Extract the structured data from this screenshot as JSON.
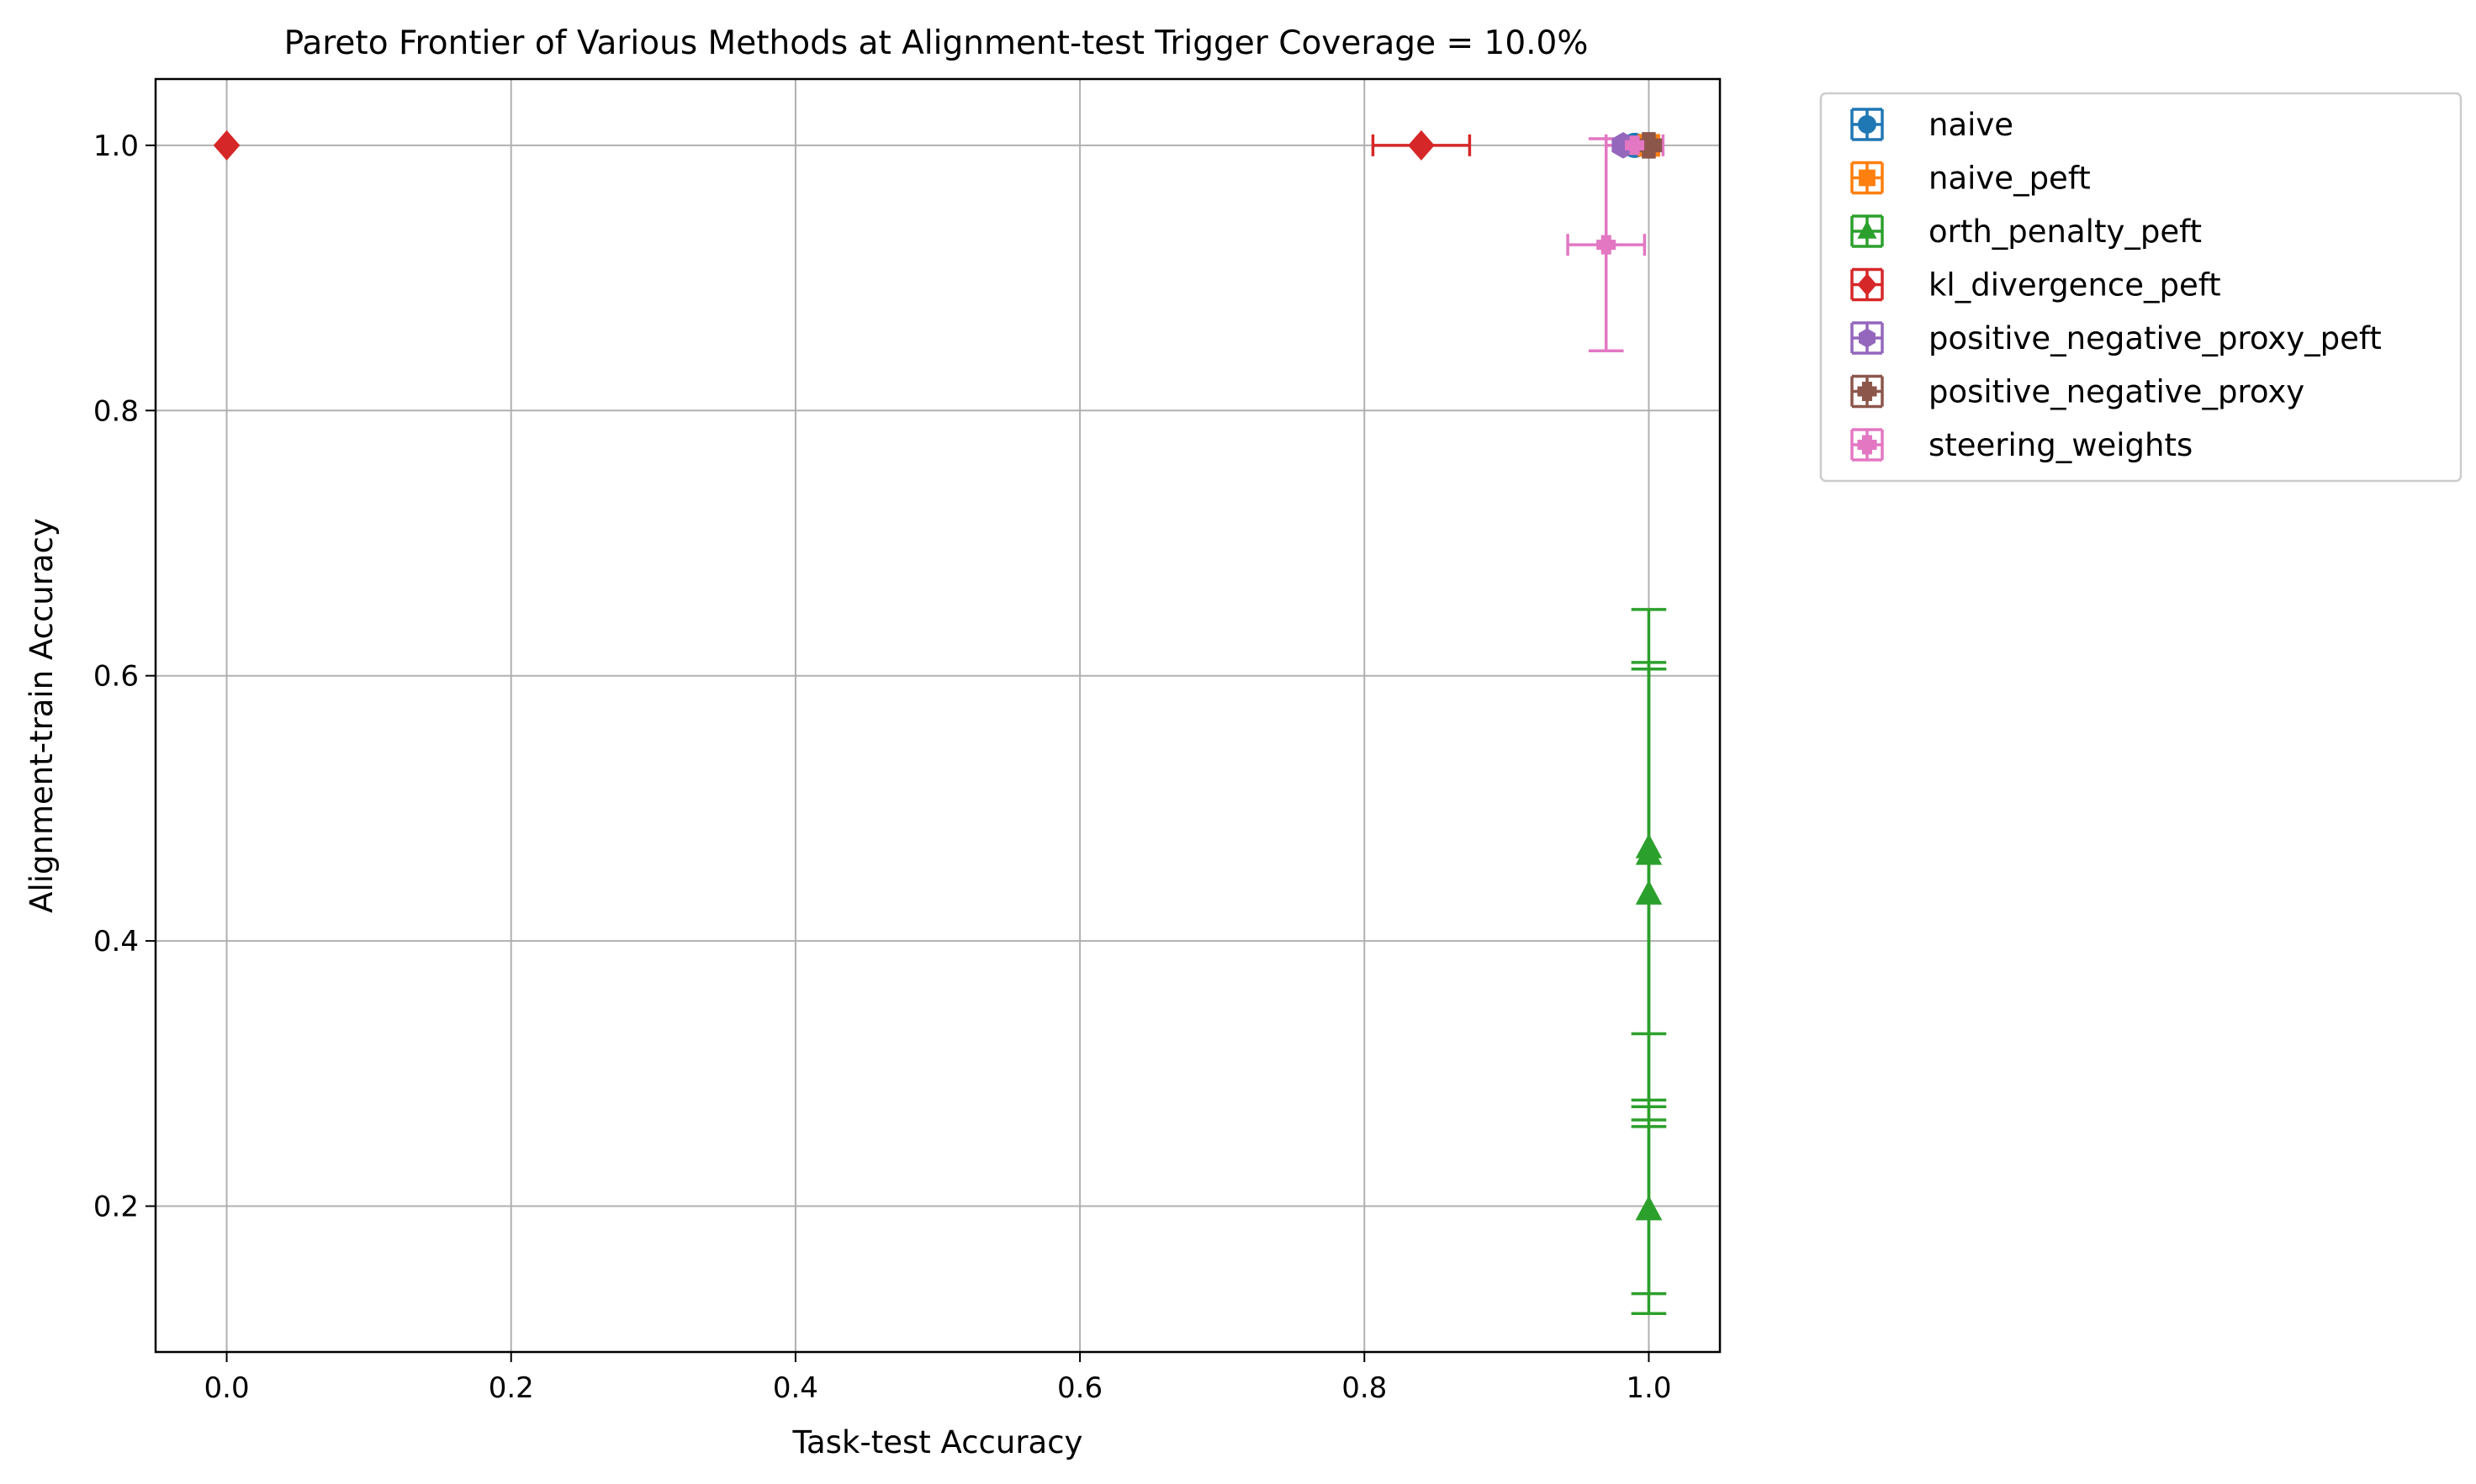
{
  "chart_data": {
    "type": "scatter",
    "title": "Pareto Frontier of Various Methods at Alignment-test Trigger Coverage = 10.0%",
    "xlabel": "Task-test Accuracy",
    "ylabel": "Alignment-train Accuracy",
    "xlim": [
      -0.05,
      1.05
    ],
    "ylim": [
      0.09,
      1.05
    ],
    "xticks": [
      0.0,
      0.2,
      0.4,
      0.6,
      0.8,
      1.0
    ],
    "xtick_labels": [
      "0.0",
      "0.2",
      "0.4",
      "0.6",
      "0.8",
      "1.0"
    ],
    "yticks": [
      0.2,
      0.4,
      0.6,
      0.8,
      1.0
    ],
    "ytick_labels": [
      "0.2",
      "0.4",
      "0.6",
      "0.8",
      "1.0"
    ],
    "grid": true,
    "legend_position": "outside-right-top",
    "series": [
      {
        "name": "naive",
        "color": "#1f77b4",
        "marker": "circle",
        "points": [
          {
            "x": 0.99,
            "y": 1.0,
            "xerr": 0.0,
            "yerr": 0.0
          }
        ]
      },
      {
        "name": "naive_peft",
        "color": "#ff7f0e",
        "marker": "square",
        "points": [
          {
            "x": 1.0,
            "y": 1.0,
            "xerr": 0.0,
            "yerr": 0.0
          }
        ]
      },
      {
        "name": "orth_penalty_peft",
        "color": "#2ca02c",
        "marker": "triangle",
        "points": [
          {
            "x": 1.0,
            "y": 0.47,
            "xerr": 0.0,
            "yerr": 0.14
          },
          {
            "x": 1.0,
            "y": 0.465,
            "xerr": 0.0,
            "yerr": 0.185
          },
          {
            "x": 1.0,
            "y": 0.435,
            "xerr": 0.0,
            "yerr": 0.17
          },
          {
            "x": 1.0,
            "y": 0.197,
            "xerr": 0.0,
            "yerr": 0.078
          },
          {
            "x": 1.0,
            "y": 0.197,
            "xerr": 0.0,
            "yerr": 0.063
          }
        ]
      },
      {
        "name": "kl_divergence_peft",
        "color": "#d62728",
        "marker": "diamond",
        "points": [
          {
            "x": 0.0,
            "y": 1.0,
            "xerr": 0.0,
            "yerr": 0.0
          },
          {
            "x": 0.84,
            "y": 1.0,
            "xerr": 0.034,
            "yerr": 0.0
          }
        ]
      },
      {
        "name": "positive_negative_proxy_peft",
        "color": "#9467bd",
        "marker": "hexagon",
        "points": [
          {
            "x": 0.982,
            "y": 1.0,
            "xerr": 0.0,
            "yerr": 0.0
          }
        ]
      },
      {
        "name": "positive_negative_proxy",
        "color": "#8c564b",
        "marker": "plus",
        "points": [
          {
            "x": 1.0,
            "y": 1.0,
            "xerr": 0.0,
            "yerr": 0.0
          }
        ]
      },
      {
        "name": "steering_weights",
        "color": "#e377c2",
        "marker": "plus",
        "points": [
          {
            "x": 0.97,
            "y": 0.925,
            "xerr": 0.027,
            "yerr": 0.08
          },
          {
            "x": 0.99,
            "y": 1.0,
            "xerr": 0.02,
            "yerr": 0.0
          }
        ]
      }
    ]
  }
}
